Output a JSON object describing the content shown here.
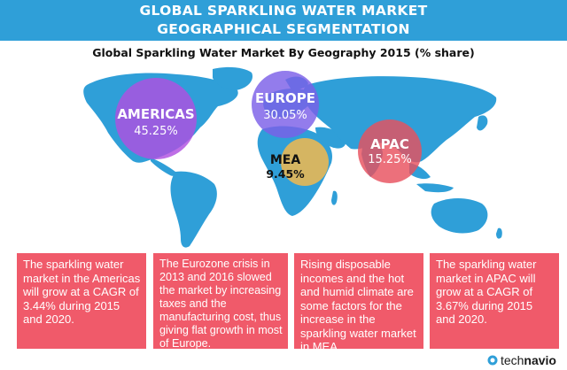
{
  "header": {
    "line1": "GLOBAL SPARKLING WATER MARKET",
    "line2": "GEOGRAPHICAL SEGMENTATION"
  },
  "chart_data": {
    "type": "bubble",
    "title": "Global Sparkling Water Market By Geography 2015 (% share)",
    "categories": [
      "AMERICAS",
      "EUROPE",
      "MEA",
      "APAC"
    ],
    "values": [
      45.25,
      30.05,
      9.45,
      15.25
    ],
    "value_labels": [
      "45.25%",
      "30.05%",
      "9.45%",
      "15.25%"
    ],
    "unit": "%",
    "colors": [
      "#b04fe0",
      "#7b5fe8",
      "#f2b84e",
      "#e8505e"
    ]
  },
  "cards": [
    {
      "text": "The sparkling water market in the Americas will grow at a CAGR of 3.44% during 2015 and 2020."
    },
    {
      "text": "The Eurozone crisis in 2013 and 2016 slowed the market by increasing taxes and the manufacturing cost, thus giving flat growth in most of Europe."
    },
    {
      "text": "Rising disposable incomes and the hot and humid climate are some factors for the increase in the sparkling water market in MEA."
    },
    {
      "text": "The sparkling water market in APAC will grow at a CAGR of 3.67% during 2015 and 2020."
    }
  ],
  "logo": {
    "part1": "tech",
    "part2": "navio"
  },
  "colors": {
    "banner": "#2f9fd8",
    "map": "#2f9fd8",
    "card": "#f05a6a"
  }
}
